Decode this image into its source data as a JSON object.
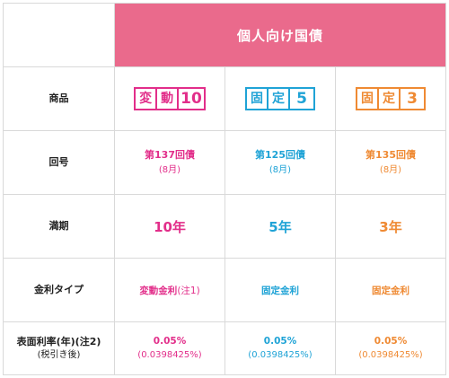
{
  "header": {
    "title": "個人向け国債"
  },
  "rows": {
    "product": "商品",
    "series": "回号",
    "maturity": "満期",
    "rate_type": "金利タイプ",
    "rate_label_line1": "表面利率(年)(注2)",
    "rate_label_line2": "(税引き後)"
  },
  "columns": [
    {
      "badge_chars": [
        "変",
        "動"
      ],
      "badge_number": "10",
      "series": "第137回債",
      "month": "(8月)",
      "term": "10年",
      "rate_type": "変動金利",
      "rate_type_note": "(注1)",
      "rate": "0.05%",
      "rate_after_tax": "(0.0398425%)",
      "color": "#e22e8a"
    },
    {
      "badge_chars": [
        "固",
        "定"
      ],
      "badge_number": "5",
      "series": "第125回債",
      "month": "(8月)",
      "term": "5年",
      "rate_type": "固定金利",
      "rate_type_note": "",
      "rate": "0.05%",
      "rate_after_tax": "(0.0398425%)",
      "color": "#1fa3d6"
    },
    {
      "badge_chars": [
        "固",
        "定"
      ],
      "badge_number": "3",
      "series": "第135回債",
      "month": "(8月)",
      "term": "3年",
      "rate_type": "固定金利",
      "rate_type_note": "",
      "rate": "0.05%",
      "rate_after_tax": "(0.0398425%)",
      "color": "#ef8a33"
    }
  ],
  "colors": {
    "header_bg": "#ea6a8c",
    "border": "#d9d9d9"
  }
}
